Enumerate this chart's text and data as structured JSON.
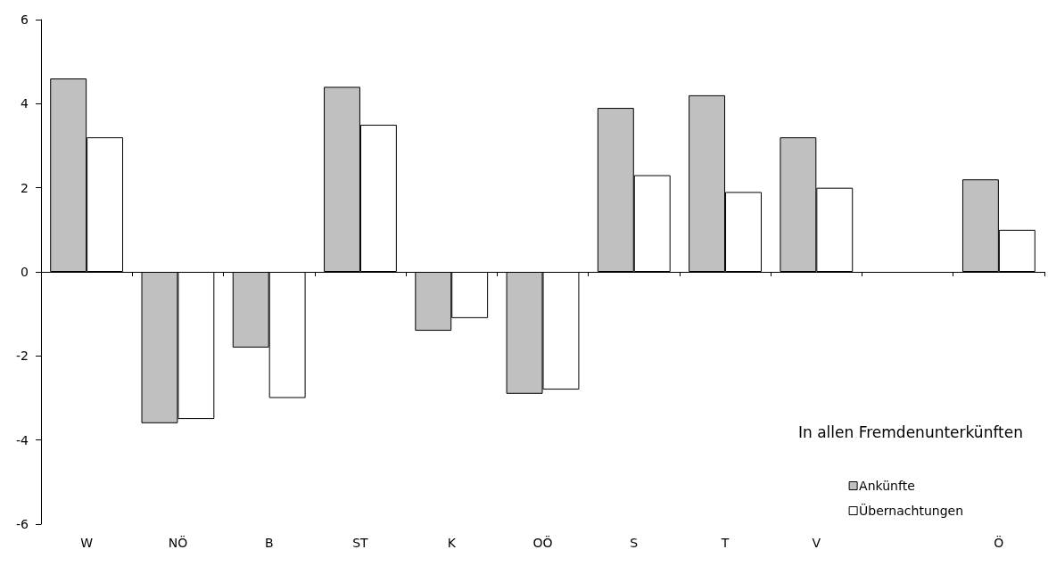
{
  "chart_data": {
    "type": "bar",
    "categories": [
      "W",
      "NÖ",
      "B",
      "ST",
      "K",
      "OÖ",
      "S",
      "T",
      "V",
      null,
      "Ö"
    ],
    "series": [
      {
        "name": "Ankünfte",
        "color": "#c0c0c0",
        "values": [
          4.6,
          -3.6,
          -1.8,
          4.4,
          -1.4,
          -2.9,
          3.9,
          4.2,
          3.2,
          null,
          2.2
        ]
      },
      {
        "name": "Übernachtungen",
        "color": "#ffffff",
        "values": [
          3.2,
          -3.5,
          -3.0,
          3.5,
          -1.1,
          -2.8,
          2.3,
          1.9,
          2.0,
          null,
          1.0
        ]
      }
    ],
    "legend_title": "In allen Fremdenunterkünften",
    "legend": "bottom right",
    "ylim": [
      -6,
      6
    ],
    "yticks": [
      -6,
      -4,
      -2,
      0,
      2,
      4,
      6
    ]
  }
}
